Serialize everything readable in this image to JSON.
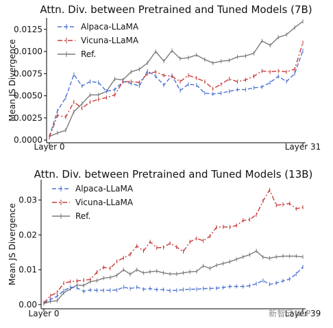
{
  "chart_data": [
    {
      "type": "line",
      "title": "Attn. Div. between Pretrained and Tuned Models (7B)",
      "ylabel": "Mean JS Divergence",
      "xlabel": "",
      "x_tick_labels": [
        "Layer 0",
        "Layer 31"
      ],
      "y_ticks": [
        0.0,
        0.0025,
        0.005,
        0.0075,
        0.01,
        0.0125
      ],
      "y_tick_labels": [
        "0.0000",
        "0.0025",
        "0.0050",
        "0.0075",
        "0.0100",
        "0.0125"
      ],
      "ylim": [
        -0.0003,
        0.0138
      ],
      "grid": false,
      "legend_position": "top-left",
      "x": [
        0,
        1,
        2,
        3,
        4,
        5,
        6,
        7,
        8,
        9,
        10,
        11,
        12,
        13,
        14,
        15,
        16,
        17,
        18,
        19,
        20,
        21,
        22,
        23,
        24,
        25,
        26,
        27,
        28,
        29,
        30,
        31
      ],
      "series": [
        {
          "name": "Alpaca-LLaMA",
          "color": "#4c72d0",
          "style": "dashed",
          "values": [
            0.0004,
            0.0033,
            0.0048,
            0.0074,
            0.0061,
            0.0066,
            0.0065,
            0.0055,
            0.0057,
            0.0066,
            0.0064,
            0.0061,
            0.0078,
            0.0072,
            0.0062,
            0.0073,
            0.0056,
            0.0063,
            0.0062,
            0.0053,
            0.0052,
            0.0053,
            0.0055,
            0.0057,
            0.0057,
            0.0059,
            0.006,
            0.0065,
            0.0072,
            0.0066,
            0.0075,
            0.0101
          ]
        },
        {
          "name": "Vicuna-LLaMA",
          "color": "#c73a3a",
          "style": "dashdot",
          "values": [
            0.0003,
            0.0028,
            0.0026,
            0.0043,
            0.0036,
            0.0043,
            0.0046,
            0.0048,
            0.0051,
            0.0066,
            0.0066,
            0.0065,
            0.0075,
            0.0077,
            0.0073,
            0.0072,
            0.0066,
            0.0073,
            0.007,
            0.0066,
            0.0058,
            0.0063,
            0.0069,
            0.0066,
            0.0068,
            0.0072,
            0.0078,
            0.0077,
            0.0078,
            0.0077,
            0.008,
            0.011
          ]
        },
        {
          "name": "Ref.",
          "color": "#7a7a7a",
          "style": "solid",
          "values": [
            0.0004,
            0.0008,
            0.0011,
            0.0032,
            0.0041,
            0.0051,
            0.0051,
            0.0055,
            0.0069,
            0.0068,
            0.0077,
            0.008,
            0.0087,
            0.01,
            0.0089,
            0.0101,
            0.0092,
            0.0093,
            0.0096,
            0.0091,
            0.0087,
            0.0089,
            0.009,
            0.0094,
            0.0095,
            0.0098,
            0.0112,
            0.0107,
            0.0116,
            0.0119,
            0.0127,
            0.0134
          ]
        }
      ]
    },
    {
      "type": "line",
      "title": "Attn. Div. between Pretrained and Tuned Models (13B)",
      "ylabel": "Mean JS Divergence",
      "xlabel": "",
      "x_tick_labels": [
        "Layer 0",
        "Layer 39"
      ],
      "y_ticks": [
        0.0,
        0.01,
        0.02,
        0.03
      ],
      "y_tick_labels": [
        "0.00",
        "0.01",
        "0.02",
        "0.03"
      ],
      "ylim": [
        -0.0012,
        0.0358
      ],
      "grid": false,
      "legend_position": "top-left",
      "x": [
        0,
        1,
        2,
        3,
        4,
        5,
        6,
        7,
        8,
        9,
        10,
        11,
        12,
        13,
        14,
        15,
        16,
        17,
        18,
        19,
        20,
        21,
        22,
        23,
        24,
        25,
        26,
        27,
        28,
        29,
        30,
        31,
        32,
        33,
        34,
        35,
        36,
        37,
        38,
        39
      ],
      "series": [
        {
          "name": "Alpaca-LLaMA",
          "color": "#4c72d0",
          "style": "dashed",
          "values": [
            0.0005,
            0.0015,
            0.0024,
            0.004,
            0.005,
            0.0048,
            0.0038,
            0.0042,
            0.0041,
            0.0041,
            0.0041,
            0.0042,
            0.005,
            0.0046,
            0.005,
            0.0044,
            0.0046,
            0.0043,
            0.0043,
            0.004,
            0.0041,
            0.0043,
            0.0044,
            0.0044,
            0.0046,
            0.0046,
            0.0047,
            0.0049,
            0.0052,
            0.0052,
            0.0052,
            0.0054,
            0.006,
            0.0069,
            0.0058,
            0.0062,
            0.0068,
            0.0073,
            0.0088,
            0.0108
          ]
        },
        {
          "name": "Vicuna-LLaMA",
          "color": "#c73a3a",
          "style": "dashdot",
          "values": [
            0.0005,
            0.0025,
            0.0035,
            0.0062,
            0.0066,
            0.0068,
            0.007,
            0.0072,
            0.0093,
            0.0107,
            0.0104,
            0.0124,
            0.0134,
            0.0144,
            0.0168,
            0.0154,
            0.018,
            0.0163,
            0.0164,
            0.0176,
            0.0165,
            0.0152,
            0.018,
            0.019,
            0.0183,
            0.0196,
            0.0222,
            0.0223,
            0.0222,
            0.0227,
            0.0241,
            0.0244,
            0.0258,
            0.0297,
            0.0329,
            0.0285,
            0.0287,
            0.029,
            0.0275,
            0.0279
          ]
        },
        {
          "name": "Ref.",
          "color": "#7a7a7a",
          "style": "solid",
          "values": [
            0.0003,
            0.0009,
            0.0011,
            0.0034,
            0.0045,
            0.0056,
            0.0055,
            0.0066,
            0.0069,
            0.0076,
            0.0078,
            0.0084,
            0.01,
            0.0087,
            0.01,
            0.0091,
            0.0094,
            0.0096,
            0.0091,
            0.0088,
            0.0088,
            0.0091,
            0.0094,
            0.0095,
            0.0111,
            0.0104,
            0.0113,
            0.0118,
            0.0123,
            0.013,
            0.0137,
            0.0143,
            0.0154,
            0.0136,
            0.0133,
            0.0137,
            0.0139,
            0.0139,
            0.0139,
            0.0137
          ]
        }
      ]
    }
  ],
  "watermark": "新智元NLP"
}
